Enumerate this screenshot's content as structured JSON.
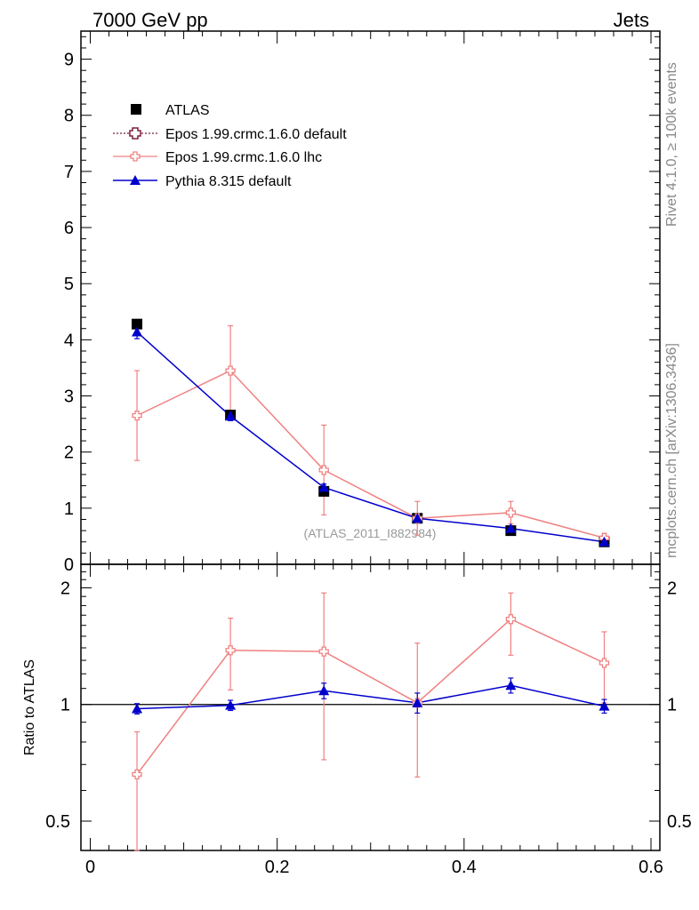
{
  "header": {
    "left": "7000 GeV pp",
    "right": "Jets"
  },
  "side_labels": {
    "top": "Rivet 4.1.0, ≥ 100k events",
    "bottom": "mcplots.cern.ch [arXiv:1306.3436]"
  },
  "watermark": "(ATLAS_2011_I882984)",
  "colors": {
    "atlas": "#000000",
    "epos_default": "#7a1f3d",
    "epos_lhc": "#f08080",
    "pythia": "#0000cc"
  },
  "chart_data": [
    {
      "type": "scatter",
      "panel": "main",
      "xlim": [
        0,
        0.6
      ],
      "ylim": [
        0,
        9.5
      ],
      "yticks": [
        0,
        1,
        2,
        3,
        4,
        5,
        6,
        7,
        8,
        9
      ],
      "x": [
        0.05,
        0.15,
        0.25,
        0.35,
        0.45,
        0.55
      ],
      "series": [
        {
          "name": "ATLAS",
          "marker": "square",
          "values": [
            4.28,
            2.66,
            1.3,
            0.82,
            0.6,
            0.4
          ],
          "err": [
            0.05,
            0.05,
            0.05,
            0.04,
            0.04,
            0.03
          ]
        },
        {
          "name": "Epos 1.99.crmc.1.6.0 default",
          "marker": "open-cross",
          "line": "dotted",
          "values": [
            null,
            null,
            null,
            null,
            null,
            null
          ],
          "err": []
        },
        {
          "name": "Epos 1.99.crmc.1.6.0 lhc",
          "marker": "open-cross",
          "line": "solid",
          "values": [
            2.65,
            3.45,
            1.68,
            0.82,
            0.92,
            0.47
          ],
          "err": [
            0.8,
            0.8,
            0.8,
            0.3,
            0.2,
            0.08
          ]
        },
        {
          "name": "Pythia 8.315 default",
          "marker": "triangle",
          "line": "solid",
          "values": [
            4.14,
            2.64,
            1.37,
            0.82,
            0.64,
            0.4
          ],
          "err": [
            0.12,
            0.08,
            0.06,
            0.04,
            0.04,
            0.03
          ]
        }
      ]
    },
    {
      "type": "line",
      "panel": "ratio",
      "ylabel": "Ratio to ATLAS",
      "xlim": [
        0,
        0.6
      ],
      "ylim": [
        0.42,
        2.3
      ],
      "yticks": [
        0.5,
        1,
        2
      ],
      "xticks": [
        0,
        0.2,
        0.4,
        0.6
      ],
      "x": [
        0.05,
        0.15,
        0.25,
        0.35,
        0.45,
        0.55
      ],
      "series": [
        {
          "name": "Epos 1.99.crmc.1.6.0 lhc",
          "values": [
            0.66,
            1.38,
            1.37,
            1.01,
            1.66,
            1.28
          ],
          "err_low": [
            0.26,
            0.29,
            0.65,
            0.36,
            0.32,
            0.27
          ],
          "err_high": [
            0.19,
            0.29,
            0.57,
            0.43,
            0.28,
            0.26
          ]
        },
        {
          "name": "Pythia 8.315 default",
          "values": [
            0.975,
            0.995,
            1.085,
            1.01,
            1.12,
            0.99
          ],
          "err_low": [
            0.03,
            0.03,
            0.05,
            0.06,
            0.05,
            0.04
          ],
          "err_high": [
            0.03,
            0.03,
            0.05,
            0.06,
            0.05,
            0.04
          ]
        }
      ]
    }
  ]
}
